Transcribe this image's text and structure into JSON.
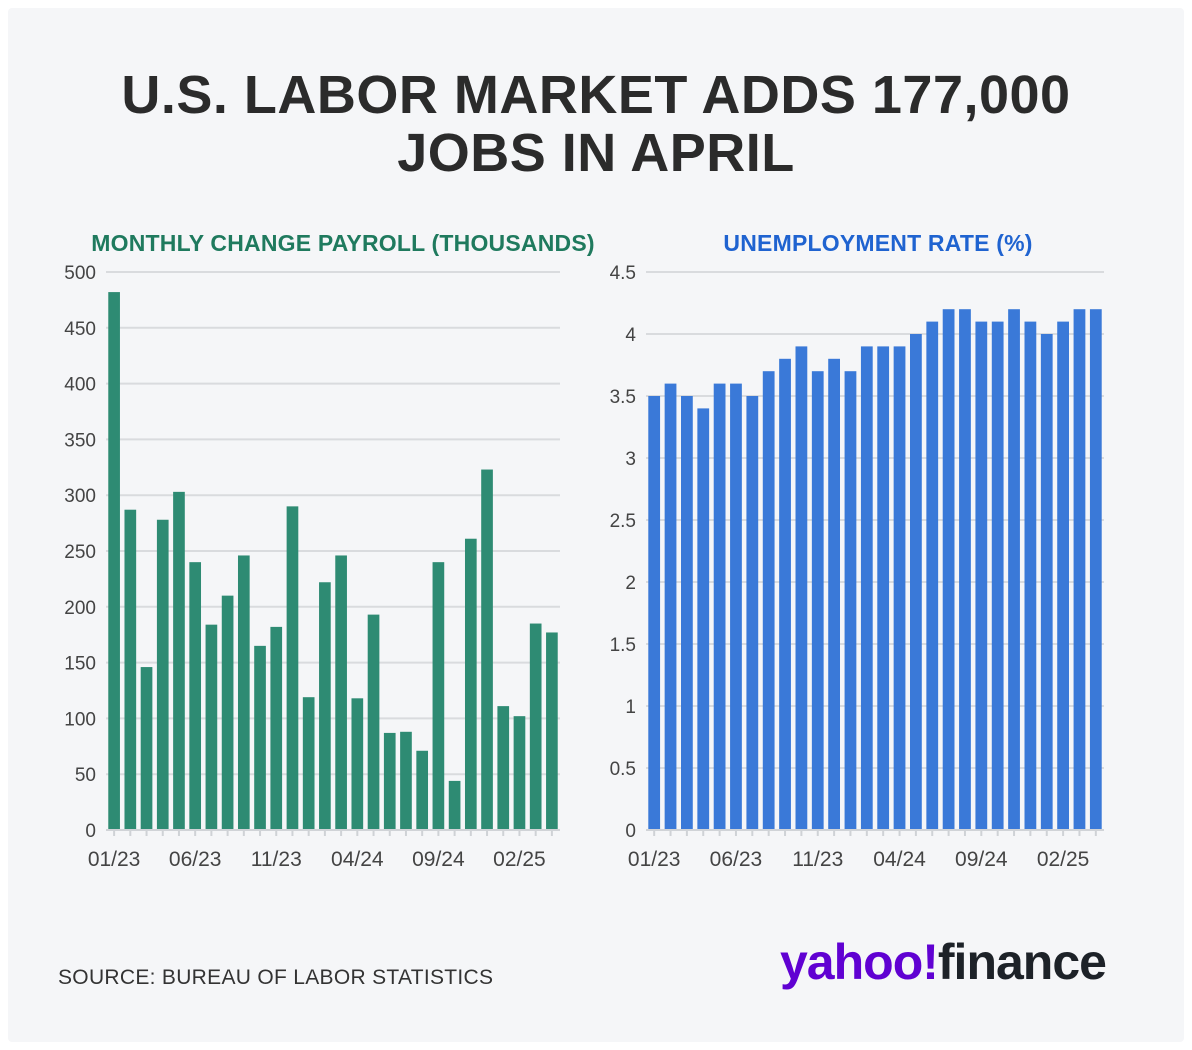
{
  "headline": [
    "U.S. LABOR MARKET ADDS 177,000",
    "JOBS IN APRIL"
  ],
  "source": "SOURCE: BUREAU OF LABOR STATISTICS",
  "logo": {
    "part1": "yahoo",
    "bang": "!",
    "part2": "finance"
  },
  "colors": {
    "payroll": "#2e8b73",
    "unemployment": "#3a79d8",
    "payroll_title": "#1f7a5e",
    "unemployment_title": "#1f63d0"
  },
  "chart_data": [
    {
      "type": "bar",
      "title": "MONTHLY CHANGE PAYROLL (THOUSANDS)",
      "x_tick_labels": [
        "01/23",
        "06/23",
        "11/23",
        "04/24",
        "09/24",
        "02/25"
      ],
      "x_tick_every": 5,
      "y_ticks": [
        "0",
        "50",
        "100",
        "150",
        "200",
        "250",
        "300",
        "350",
        "400",
        "450",
        "500"
      ],
      "ylim": [
        0,
        500
      ],
      "categories": [
        "01/23",
        "02/23",
        "03/23",
        "04/23",
        "05/23",
        "06/23",
        "07/23",
        "08/23",
        "09/23",
        "10/23",
        "11/23",
        "12/23",
        "01/24",
        "02/24",
        "03/24",
        "04/24",
        "05/24",
        "06/24",
        "07/24",
        "08/24",
        "09/24",
        "10/24",
        "11/24",
        "12/24",
        "01/25",
        "02/25",
        "03/25",
        "04/25"
      ],
      "values": [
        482,
        287,
        146,
        278,
        303,
        240,
        184,
        210,
        246,
        165,
        182,
        290,
        119,
        222,
        246,
        118,
        193,
        87,
        88,
        71,
        240,
        44,
        261,
        323,
        111,
        102,
        185,
        177
      ],
      "grid": true
    },
    {
      "type": "bar",
      "title": "UNEMPLOYMENT RATE (%)",
      "x_tick_labels": [
        "01/23",
        "06/23",
        "11/23",
        "04/24",
        "09/24",
        "02/25"
      ],
      "x_tick_every": 5,
      "y_ticks": [
        "0",
        "0.5",
        "1",
        "1.5",
        "2",
        "2.5",
        "3",
        "3.5",
        "4",
        "4.5"
      ],
      "ylim": [
        0,
        4.5
      ],
      "categories": [
        "01/23",
        "02/23",
        "03/23",
        "04/23",
        "05/23",
        "06/23",
        "07/23",
        "08/23",
        "09/23",
        "10/23",
        "11/23",
        "12/23",
        "01/24",
        "02/24",
        "03/24",
        "04/24",
        "05/24",
        "06/24",
        "07/24",
        "08/24",
        "09/24",
        "10/24",
        "11/24",
        "12/24",
        "01/25",
        "02/25",
        "03/25",
        "04/25"
      ],
      "values": [
        3.5,
        3.6,
        3.5,
        3.4,
        3.6,
        3.6,
        3.5,
        3.7,
        3.8,
        3.9,
        3.7,
        3.8,
        3.7,
        3.9,
        3.9,
        3.9,
        4.0,
        4.1,
        4.2,
        4.2,
        4.1,
        4.1,
        4.2,
        4.1,
        4.0,
        4.1,
        4.2,
        4.2
      ],
      "grid": true
    }
  ]
}
